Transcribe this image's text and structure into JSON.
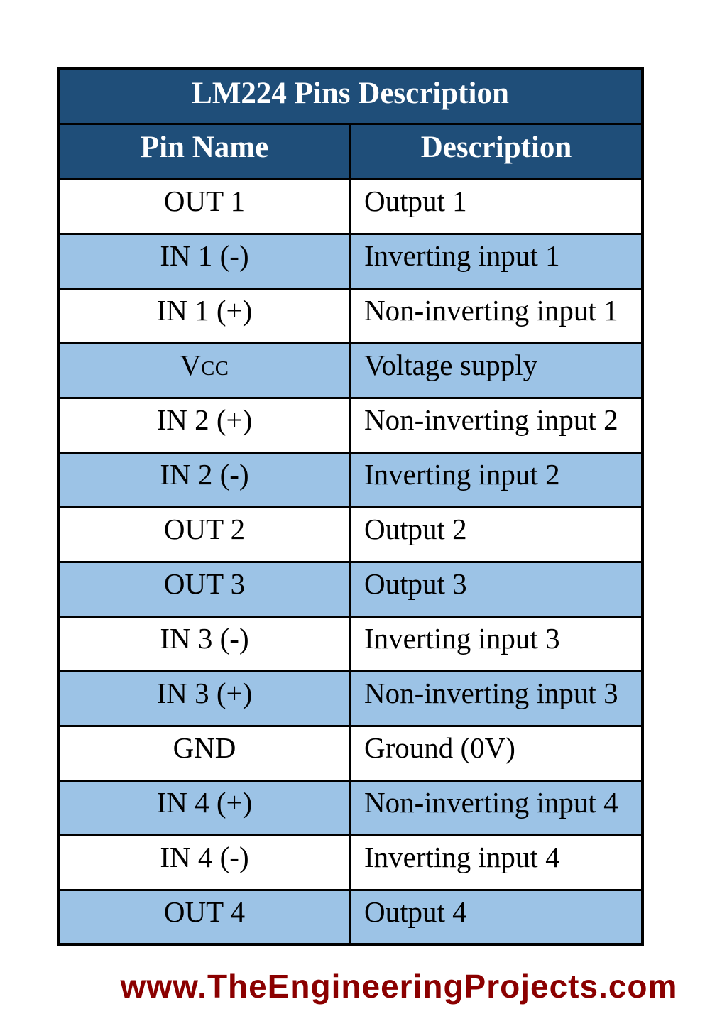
{
  "table": {
    "title": "LM224 Pins Description",
    "columns": [
      "Pin Name",
      "Description"
    ],
    "rows": [
      {
        "pin": "OUT 1",
        "desc": "Output 1"
      },
      {
        "pin": "IN 1 (-)",
        "desc": "Inverting input 1"
      },
      {
        "pin": "IN 1 (+)",
        "desc": "Non-inverting input 1"
      },
      {
        "pin": "V",
        "pin_smallcaps": "CC",
        "desc": "Voltage supply"
      },
      {
        "pin": "IN 2 (+)",
        "desc": "Non-inverting input 2"
      },
      {
        "pin": "IN 2 (-)",
        "desc": "Inverting input 2"
      },
      {
        "pin": "OUT 2",
        "desc": "Output 2"
      },
      {
        "pin": "OUT 3",
        "desc": "Output 3"
      },
      {
        "pin": "IN 3 (-)",
        "desc": "Inverting input 3"
      },
      {
        "pin": "IN 3 (+)",
        "desc": "Non-inverting input 3"
      },
      {
        "pin": "GND",
        "desc": "Ground (0V)"
      },
      {
        "pin": "IN 4 (+)",
        "desc": "Non-inverting input 4"
      },
      {
        "pin": "IN 4 (-)",
        "desc": "Inverting input 4"
      },
      {
        "pin": "OUT 4",
        "desc": "Output 4"
      }
    ]
  },
  "footer": {
    "watermark": "www.TheEngineeringProjects.com"
  },
  "colors": {
    "header_bg": "#1F4E79",
    "header_text": "#FFFFFF",
    "row_bg": "#FFFFFF",
    "row_alt_bg": "#9CC3E6",
    "body_text": "#000000",
    "border": "#000000",
    "watermark_red": "#8B0000"
  }
}
